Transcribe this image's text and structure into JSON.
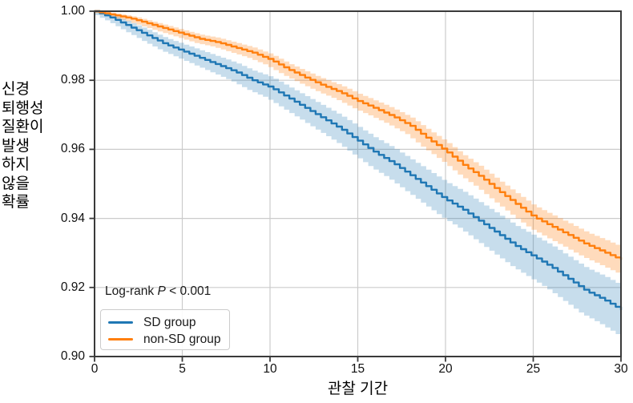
{
  "figure": {
    "y_axis_label": "신경\n퇴행성\n질환이\n발생\n하지\n않을\n확률",
    "x_axis_label": "관찰 기간",
    "annotation": {
      "prefix": "Log-rank ",
      "p_symbol": "P",
      "suffix": " < 0.001"
    },
    "legend": {
      "items": [
        {
          "label": "SD group",
          "color": "#1f77b4"
        },
        {
          "label": "non-SD group",
          "color": "#ff7f0e"
        }
      ]
    },
    "colors": {
      "axis": "#3a3a3a",
      "grid": "#cbcbcb",
      "background": "#ffffff",
      "text": "#111111",
      "sd_line": "#1f77b4",
      "nonsd_line": "#ff7f0e",
      "sd_band": "rgba(31,119,180,0.25)",
      "nonsd_band": "rgba(255,127,14,0.28)"
    }
  },
  "chart_data": {
    "type": "line",
    "subtype": "kaplan-meier-step-with-confidence-bands",
    "title": "",
    "xlabel": "관찰 기간",
    "ylabel": "신경 퇴행성 질환이 발생 하지 않을 확률",
    "xlim": [
      0,
      30
    ],
    "ylim": [
      0.9,
      1.0
    ],
    "x_ticks": [
      0,
      5,
      10,
      15,
      20,
      25,
      30
    ],
    "x_tick_labels": [
      "0",
      "5",
      "10",
      "15",
      "20",
      "25",
      "30"
    ],
    "y_ticks": [
      0.9,
      0.92,
      0.94,
      0.96,
      0.98,
      1.0
    ],
    "y_tick_labels": [
      "0.90",
      "0.92",
      "0.94",
      "0.96",
      "0.98",
      "1.00"
    ],
    "grid": true,
    "legend_position": "lower-left",
    "annotation_text": "Log-rank P < 0.001",
    "x": [
      0,
      1,
      2,
      3,
      4,
      5,
      6,
      7,
      8,
      9,
      10,
      11,
      12,
      13,
      14,
      15,
      16,
      17,
      18,
      19,
      20,
      21,
      22,
      23,
      24,
      25,
      26,
      27,
      28,
      29,
      30
    ],
    "series": [
      {
        "name": "SD group",
        "color": "#1f77b4",
        "band_color": "rgba(31,119,180,0.25)",
        "values": [
          1.0,
          0.998,
          0.9955,
          0.993,
          0.9905,
          0.9885,
          0.9865,
          0.9845,
          0.9825,
          0.98,
          0.978,
          0.975,
          0.972,
          0.969,
          0.966,
          0.9625,
          0.959,
          0.956,
          0.9525,
          0.949,
          0.9455,
          0.9425,
          0.939,
          0.9355,
          0.932,
          0.929,
          0.926,
          0.9225,
          0.919,
          0.9165,
          0.9135
        ],
        "ci_halfwidth": [
          0.0004,
          0.0009,
          0.0013,
          0.0016,
          0.0018,
          0.002,
          0.0022,
          0.0024,
          0.0026,
          0.0028,
          0.003,
          0.0032,
          0.0034,
          0.0036,
          0.0038,
          0.004,
          0.0042,
          0.0044,
          0.0046,
          0.0048,
          0.005,
          0.0052,
          0.0054,
          0.0056,
          0.0058,
          0.006,
          0.0062,
          0.0064,
          0.0066,
          0.0068,
          0.007
        ]
      },
      {
        "name": "non-SD group",
        "color": "#ff7f0e",
        "band_color": "rgba(255,127,14,0.28)",
        "values": [
          1.0,
          0.999,
          0.998,
          0.9965,
          0.995,
          0.9935,
          0.992,
          0.991,
          0.9895,
          0.988,
          0.986,
          0.9832,
          0.9808,
          0.9785,
          0.9765,
          0.974,
          0.9718,
          0.9695,
          0.9668,
          0.963,
          0.9595,
          0.9555,
          0.952,
          0.948,
          0.9442,
          0.9405,
          0.9378,
          0.9352,
          0.9325,
          0.9303,
          0.928
        ],
        "ci_halfwidth": [
          0.0002,
          0.0005,
          0.0007,
          0.0009,
          0.001,
          0.0011,
          0.0012,
          0.0013,
          0.0014,
          0.0015,
          0.0016,
          0.0017,
          0.0018,
          0.0019,
          0.002,
          0.0021,
          0.0022,
          0.0023,
          0.0024,
          0.0026,
          0.0027,
          0.0028,
          0.0029,
          0.003,
          0.0031,
          0.0032,
          0.0033,
          0.0034,
          0.0035,
          0.0036,
          0.0037
        ]
      }
    ]
  }
}
